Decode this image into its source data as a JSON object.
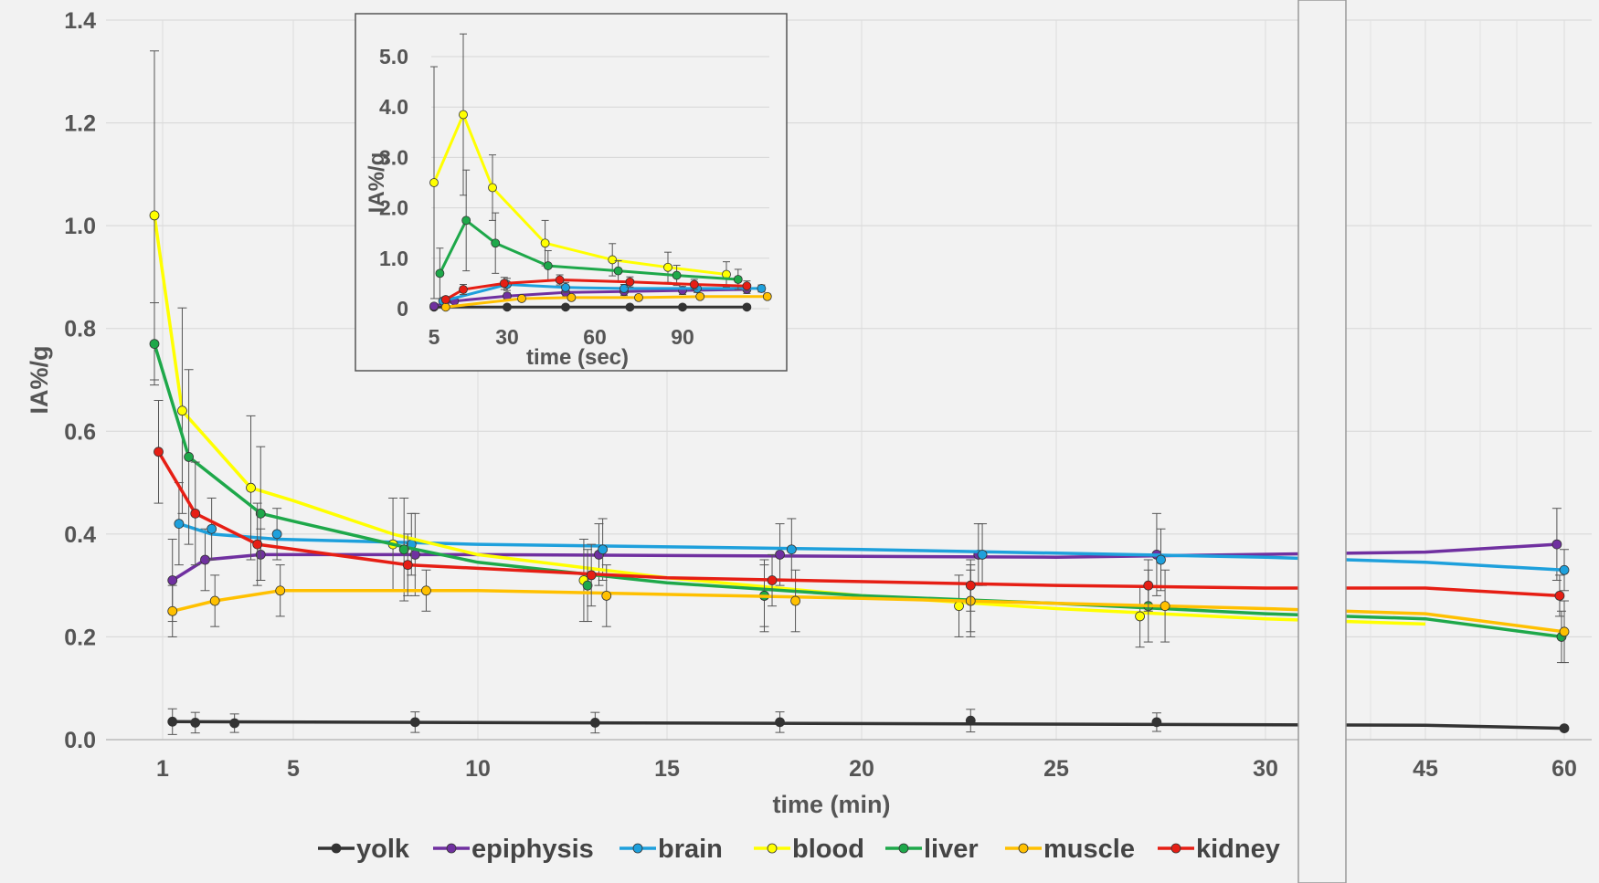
{
  "chart_data": [
    {
      "type": "line",
      "title": "",
      "xlabel": "time (min)",
      "ylabel": "IA%/g",
      "ylim": [
        0,
        1.4
      ],
      "yticks": [
        "0.0",
        "0.2",
        "0.4",
        "0.6",
        "0.8",
        "1.0",
        "1.2",
        "1.4"
      ],
      "xticks": [
        "1",
        "5",
        "10",
        "15",
        "20",
        "25",
        "30",
        "45",
        "60"
      ],
      "axis_break": "between 30 and 45",
      "grid": true,
      "legend_position": "bottom",
      "series": [
        {
          "name": "yolk",
          "color": "#333333",
          "points": [
            [
              1.3,
              0.035,
              0.025
            ],
            [
              2.0,
              0.033,
              0.02
            ],
            [
              3.2,
              0.032,
              0.018
            ],
            [
              8.3,
              0.034,
              0.02
            ],
            [
              13.1,
              0.033,
              0.02
            ],
            [
              17.9,
              0.034,
              0.02
            ],
            [
              22.8,
              0.037,
              0.022
            ],
            [
              27.4,
              0.034,
              0.018
            ],
            [
              60,
              0.022,
              0
            ]
          ],
          "line_fit": [
            [
              1.3,
              0.035
            ],
            [
              45,
              0.028
            ],
            [
              60,
              0.022
            ]
          ]
        },
        {
          "name": "epiphysis",
          "color": "#7030a0",
          "points": [
            [
              1.3,
              0.31,
              0.08
            ],
            [
              2.3,
              0.35,
              0.06
            ],
            [
              4.0,
              0.36,
              0.05
            ],
            [
              8.3,
              0.36,
              0.08
            ],
            [
              13.2,
              0.36,
              0.06
            ],
            [
              17.9,
              0.36,
              0.06
            ],
            [
              23.0,
              0.36,
              0.06
            ],
            [
              27.4,
              0.36,
              0.08
            ],
            [
              59.2,
              0.38,
              0.07
            ]
          ],
          "line_fit": [
            [
              1.3,
              0.31
            ],
            [
              2.3,
              0.35
            ],
            [
              4.0,
              0.36
            ],
            [
              10,
              0.36
            ],
            [
              25,
              0.355
            ],
            [
              45,
              0.365
            ],
            [
              59.2,
              0.38
            ]
          ]
        },
        {
          "name": "brain",
          "color": "#1ea0dc",
          "points": [
            [
              1.5,
              0.42,
              0.08
            ],
            [
              2.5,
              0.41,
              0.06
            ],
            [
              4.5,
              0.4,
              0.05
            ],
            [
              8.2,
              0.38,
              0.06
            ],
            [
              13.3,
              0.37,
              0.06
            ],
            [
              18.2,
              0.37,
              0.06
            ],
            [
              23.1,
              0.36,
              0.06
            ],
            [
              27.5,
              0.35,
              0.06
            ],
            [
              60.2,
              0.33,
              0.04
            ]
          ],
          "line_fit": [
            [
              1.5,
              0.42
            ],
            [
              2.5,
              0.4
            ],
            [
              4.5,
              0.39
            ],
            [
              10,
              0.38
            ],
            [
              20,
              0.37
            ],
            [
              30,
              0.355
            ],
            [
              45,
              0.345
            ],
            [
              60.2,
              0.33
            ]
          ]
        },
        {
          "name": "blood",
          "color": "#ffff00",
          "points": [
            [
              0.8,
              1.02,
              0.32
            ],
            [
              1.6,
              0.64,
              0.2
            ],
            [
              3.7,
              0.49,
              0.14
            ],
            [
              7.7,
              0.38,
              0.09
            ],
            [
              12.8,
              0.31,
              0.08
            ],
            [
              17.5,
              0.28,
              0.06
            ],
            [
              22.5,
              0.26,
              0.06
            ],
            [
              27.0,
              0.24,
              0.06
            ]
          ],
          "line_fit": [
            [
              0.8,
              1.02
            ],
            [
              1.6,
              0.64
            ],
            [
              3.7,
              0.49
            ],
            [
              5,
              0.465
            ],
            [
              7.7,
              0.4
            ],
            [
              10,
              0.36
            ],
            [
              15,
              0.315
            ],
            [
              20,
              0.28
            ],
            [
              25,
              0.255
            ],
            [
              30,
              0.235
            ],
            [
              45,
              0.225
            ]
          ]
        },
        {
          "name": "liver",
          "color": "#1ea84a",
          "points": [
            [
              0.8,
              0.77,
              0.08
            ],
            [
              1.8,
              0.55,
              0.17
            ],
            [
              4.0,
              0.44,
              0.13
            ],
            [
              8.0,
              0.37,
              0.1
            ],
            [
              12.9,
              0.3,
              0.07
            ],
            [
              17.5,
              0.28,
              0.07
            ],
            [
              22.8,
              0.27,
              0.07
            ],
            [
              27.2,
              0.26,
              0.07
            ],
            [
              59.7,
              0.2,
              0.05
            ]
          ],
          "line_fit": [
            [
              0.8,
              0.77
            ],
            [
              1.8,
              0.55
            ],
            [
              4.0,
              0.44
            ],
            [
              5,
              0.425
            ],
            [
              8.0,
              0.375
            ],
            [
              10,
              0.345
            ],
            [
              15,
              0.305
            ],
            [
              20,
              0.28
            ],
            [
              25,
              0.265
            ],
            [
              30,
              0.245
            ],
            [
              45,
              0.235
            ],
            [
              59.7,
              0.2
            ]
          ]
        },
        {
          "name": "muscle",
          "color": "#ffc000",
          "points": [
            [
              1.3,
              0.25,
              0.05
            ],
            [
              2.6,
              0.27,
              0.05
            ],
            [
              4.6,
              0.29,
              0.05
            ],
            [
              8.6,
              0.29,
              0.04
            ],
            [
              13.4,
              0.28,
              0.06
            ],
            [
              18.3,
              0.27,
              0.06
            ],
            [
              22.8,
              0.27,
              0.06
            ],
            [
              27.6,
              0.26,
              0.07
            ],
            [
              60.5,
              0.21,
              0.06
            ]
          ],
          "line_fit": [
            [
              1.3,
              0.25
            ],
            [
              2.6,
              0.27
            ],
            [
              4.6,
              0.29
            ],
            [
              10,
              0.29
            ],
            [
              20,
              0.275
            ],
            [
              30,
              0.255
            ],
            [
              45,
              0.245
            ],
            [
              60.5,
              0.21
            ]
          ]
        },
        {
          "name": "kidney",
          "color": "#e61e14",
          "points": [
            [
              0.9,
              0.56,
              0.1
            ],
            [
              2.0,
              0.44,
              0.1
            ],
            [
              3.9,
              0.38,
              0.08
            ],
            [
              8.1,
              0.34,
              0.06
            ],
            [
              13.0,
              0.32,
              0.06
            ],
            [
              17.7,
              0.31,
              0.05
            ],
            [
              22.8,
              0.3,
              0.05
            ],
            [
              27.2,
              0.3,
              0.05
            ],
            [
              59.5,
              0.28,
              0.04
            ]
          ],
          "line_fit": [
            [
              0.9,
              0.56
            ],
            [
              2.0,
              0.44
            ],
            [
              3.9,
              0.38
            ],
            [
              8.1,
              0.34
            ],
            [
              15,
              0.315
            ],
            [
              25,
              0.3
            ],
            [
              30,
              0.295
            ],
            [
              45,
              0.295
            ],
            [
              59.5,
              0.28
            ]
          ]
        }
      ]
    },
    {
      "type": "line",
      "title": "",
      "xlabel": "time (sec)",
      "ylabel": "IA%/g",
      "ylim": [
        0,
        5.0
      ],
      "yticks": [
        "0",
        "1.0",
        "2.0",
        "3.0",
        "4.0",
        "5.0"
      ],
      "xticks": [
        "5",
        "30",
        "60",
        "90"
      ],
      "grid": true,
      "series": [
        {
          "name": "yolk",
          "color": "#333333",
          "points": [
            [
              5,
              0.03,
              0
            ],
            [
              30,
              0.03,
              0
            ],
            [
              50,
              0.03,
              0
            ],
            [
              72,
              0.03,
              0
            ],
            [
              90,
              0.03,
              0
            ],
            [
              112,
              0.03,
              0
            ]
          ]
        },
        {
          "name": "epiphysis",
          "color": "#7030a0",
          "points": [
            [
              5,
              0.05,
              0.05
            ],
            [
              12,
              0.15,
              0.05
            ],
            [
              30,
              0.25,
              0.06
            ],
            [
              50,
              0.32,
              0.08
            ],
            [
              70,
              0.34,
              0.08
            ],
            [
              90,
              0.36,
              0.08
            ],
            [
              112,
              0.38,
              0.08
            ]
          ]
        },
        {
          "name": "brain",
          "color": "#1ea0dc",
          "points": [
            [
              8,
              0.15,
              0.06
            ],
            [
              30,
              0.48,
              0.12
            ],
            [
              50,
              0.42,
              0.1
            ],
            [
              70,
              0.4,
              0.08
            ],
            [
              95,
              0.4,
              0.08
            ],
            [
              117,
              0.4,
              0.07
            ]
          ]
        },
        {
          "name": "blood",
          "color": "#ffff00",
          "points": [
            [
              5,
              2.5,
              2.3
            ],
            [
              15,
              3.85,
              1.6
            ],
            [
              25,
              2.4,
              0.65
            ],
            [
              43,
              1.3,
              0.45
            ],
            [
              66,
              0.97,
              0.32
            ],
            [
              85,
              0.82,
              0.3
            ],
            [
              105,
              0.68,
              0.25
            ]
          ]
        },
        {
          "name": "liver",
          "color": "#1ea84a",
          "points": [
            [
              7,
              0.7,
              0.5
            ],
            [
              16,
              1.75,
              1.0
            ],
            [
              26,
              1.3,
              0.6
            ],
            [
              44,
              0.85,
              0.3
            ],
            [
              68,
              0.75,
              0.2
            ],
            [
              88,
              0.66,
              0.2
            ],
            [
              109,
              0.58,
              0.2
            ]
          ]
        },
        {
          "name": "muscle",
          "color": "#ffc000",
          "points": [
            [
              9,
              0.03,
              0.03
            ],
            [
              35,
              0.2,
              0.05
            ],
            [
              52,
              0.22,
              0.05
            ],
            [
              75,
              0.22,
              0.05
            ],
            [
              96,
              0.24,
              0.05
            ],
            [
              119,
              0.24,
              0.05
            ]
          ]
        },
        {
          "name": "kidney",
          "color": "#e61e14",
          "points": [
            [
              9,
              0.18,
              0.06
            ],
            [
              15,
              0.38,
              0.1
            ],
            [
              29,
              0.5,
              0.12
            ],
            [
              48,
              0.57,
              0.1
            ],
            [
              72,
              0.53,
              0.1
            ],
            [
              94,
              0.48,
              0.1
            ],
            [
              112,
              0.45,
              0.1
            ]
          ]
        }
      ]
    }
  ]
}
